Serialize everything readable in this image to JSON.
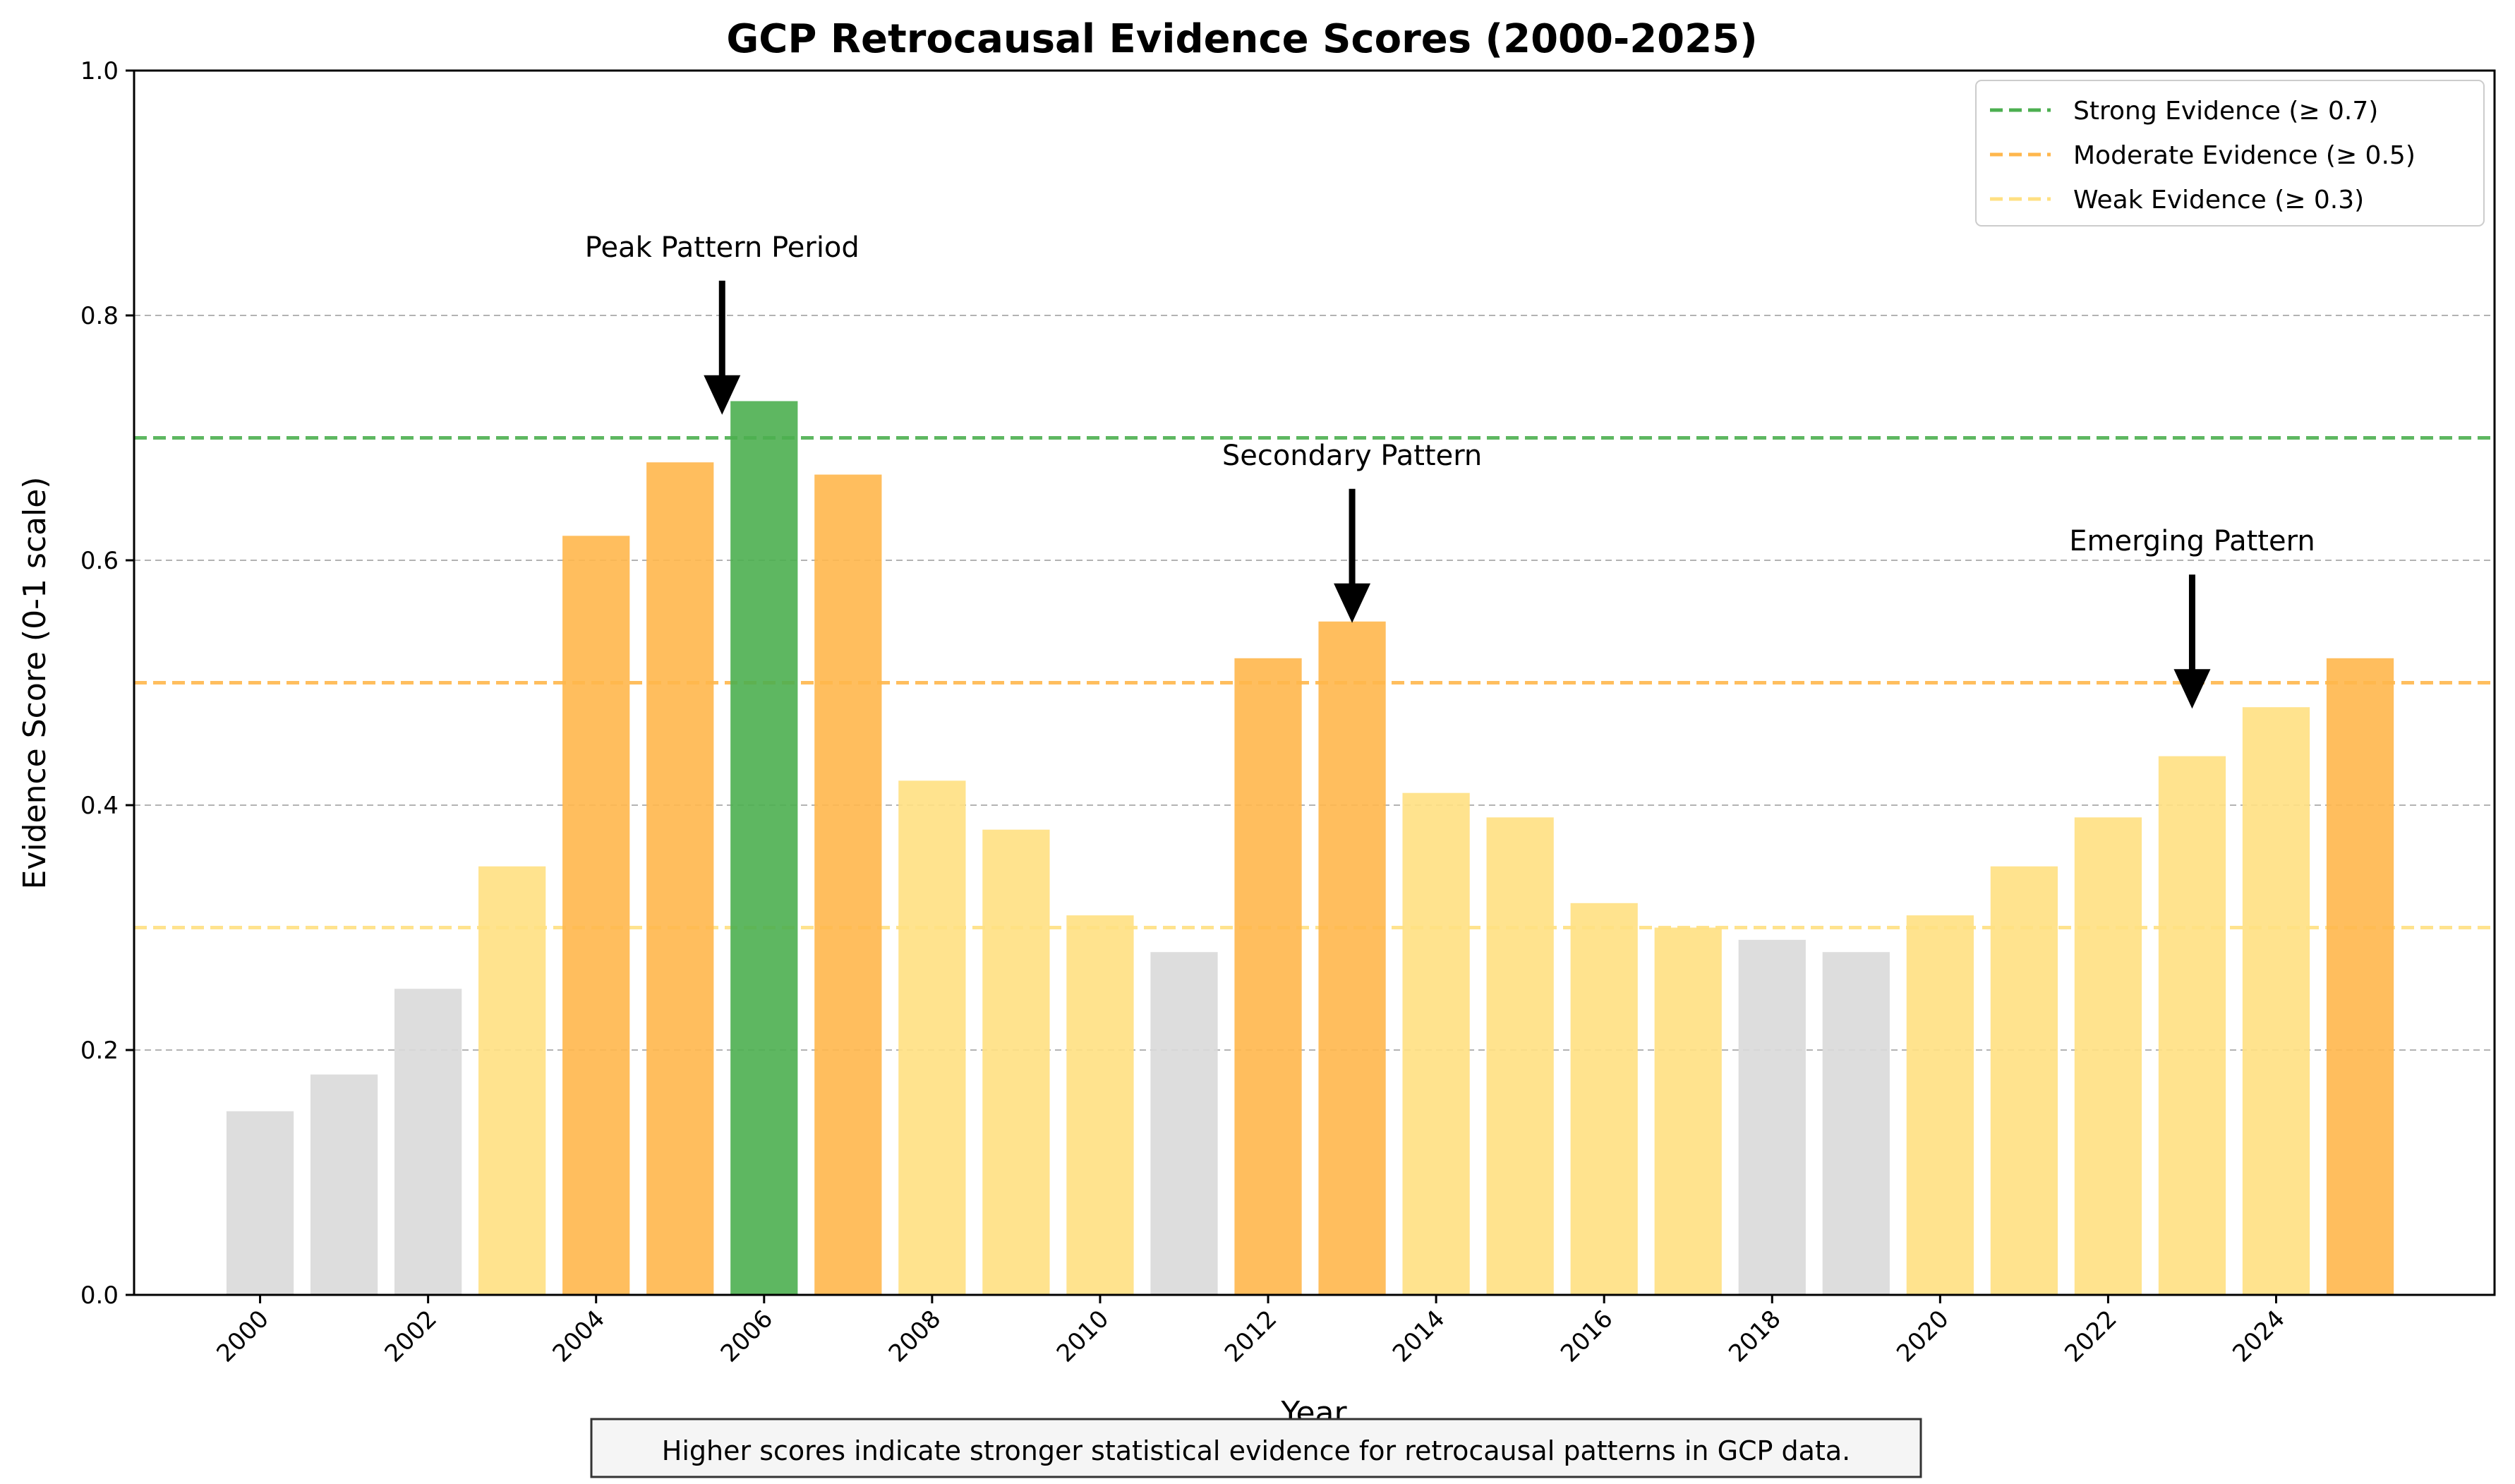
{
  "chart_data": {
    "type": "bar",
    "title": "GCP Retrocausal Evidence Scores (2000-2025)",
    "xlabel": "Year",
    "ylabel": "Evidence Score (0-1 scale)",
    "ylim": [
      0,
      1.0
    ],
    "yticks": [
      "0.0",
      "0.2",
      "0.4",
      "0.6",
      "0.8",
      "1.0"
    ],
    "xticks": [
      "2000",
      "2002",
      "2004",
      "2006",
      "2008",
      "2010",
      "2012",
      "2014",
      "2016",
      "2018",
      "2020",
      "2022",
      "2024"
    ],
    "grid": "horizontal dashed",
    "categories": [
      "2000",
      "2001",
      "2002",
      "2003",
      "2004",
      "2005",
      "2006",
      "2007",
      "2008",
      "2009",
      "2010",
      "2011",
      "2012",
      "2013",
      "2014",
      "2015",
      "2016",
      "2017",
      "2018",
      "2019",
      "2020",
      "2021",
      "2022",
      "2023",
      "2024",
      "2025"
    ],
    "values": [
      0.15,
      0.18,
      0.25,
      0.35,
      0.62,
      0.68,
      0.73,
      0.67,
      0.42,
      0.38,
      0.31,
      0.28,
      0.52,
      0.55,
      0.41,
      0.39,
      0.32,
      0.3,
      0.29,
      0.28,
      0.31,
      0.35,
      0.39,
      0.44,
      0.48,
      0.52
    ],
    "colors": {
      "strong": "#4CAF50",
      "moderate": "#FFB74D",
      "weak": "#FFE082",
      "none": "#D9D9D9"
    },
    "thresholds": [
      {
        "label": "Strong Evidence (≥ 0.7)",
        "value": 0.7,
        "color": "#4CAF50"
      },
      {
        "label": "Moderate Evidence (≥ 0.5)",
        "value": 0.5,
        "color": "#FFB74D"
      },
      {
        "label": "Weak Evidence (≥ 0.3)",
        "value": 0.3,
        "color": "#FFE082"
      }
    ],
    "legend_position": "top-right",
    "annotations": [
      {
        "text": "Peak Pattern Period",
        "x": 2005.5,
        "y": 0.72
      },
      {
        "text": "Secondary Pattern",
        "x": 2013,
        "y": 0.55
      },
      {
        "text": "Emerging Pattern",
        "x": 2023,
        "y": 0.48
      }
    ],
    "footnote": "Higher scores indicate stronger statistical evidence for retrocausal patterns in GCP data."
  }
}
